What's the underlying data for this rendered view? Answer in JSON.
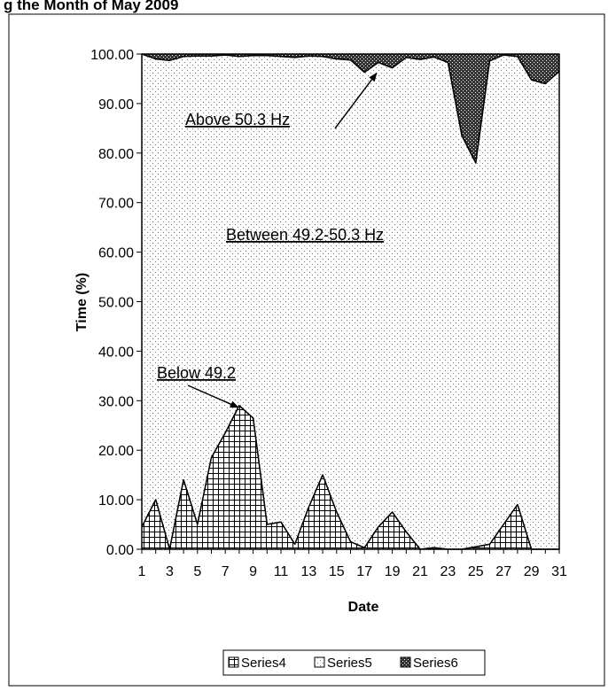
{
  "chart_data": {
    "type": "area",
    "stacked": true,
    "title": "g the Month of May 2009",
    "xlabel": "Date",
    "ylabel": "Time (%)",
    "ylim": [
      0,
      100
    ],
    "y_ticks": [
      "0.00",
      "10.00",
      "20.00",
      "30.00",
      "40.00",
      "50.00",
      "60.00",
      "70.00",
      "80.00",
      "90.00",
      "100.00"
    ],
    "x_ticks": [
      "1",
      "3",
      "5",
      "7",
      "9",
      "11",
      "13",
      "15",
      "17",
      "19",
      "21",
      "23",
      "25",
      "27",
      "29",
      "31"
    ],
    "x": [
      1,
      2,
      3,
      4,
      5,
      6,
      7,
      8,
      9,
      10,
      11,
      12,
      13,
      14,
      15,
      16,
      17,
      18,
      19,
      20,
      21,
      22,
      23,
      24,
      25,
      26,
      27,
      28,
      29,
      30,
      31
    ],
    "series": [
      {
        "name": "Series4",
        "pattern": "grid",
        "values": [
          4.5,
          10,
          0,
          14,
          5,
          18.5,
          23.5,
          29,
          26.5,
          5,
          5.5,
          1,
          8.5,
          15,
          7.5,
          1.5,
          0.3,
          4.5,
          7.5,
          3.5,
          0,
          0.3,
          0,
          0,
          0.5,
          1,
          5,
          9,
          0,
          0,
          0
        ]
      },
      {
        "name": "Series5",
        "pattern": "dots",
        "values": [
          95.5,
          89,
          98.7,
          85.5,
          94.6,
          81.1,
          76.3,
          70.5,
          73.2,
          94.7,
          94,
          98.3,
          91.1,
          84.5,
          91.5,
          97.3,
          96,
          93.8,
          89.7,
          95.8,
          98.9,
          99.1,
          98.3,
          83.5,
          77.5,
          97.6,
          94.8,
          90.5,
          94.8,
          94,
          96.5
        ]
      },
      {
        "name": "Series6",
        "pattern": "dark",
        "values": [
          0,
          1,
          1.3,
          0.5,
          0.4,
          0.4,
          0.2,
          0.5,
          0.3,
          0.3,
          0.5,
          0.7,
          0.4,
          0.5,
          1,
          1.2,
          3.7,
          1.7,
          2.8,
          0.7,
          1.1,
          0.6,
          1.7,
          16.5,
          22,
          1.4,
          0.2,
          0.5,
          5.2,
          6,
          3.5
        ]
      }
    ],
    "annotations": [
      {
        "text": "Above 50.3 Hz",
        "arrow_to": [
          18,
          96.5
        ]
      },
      {
        "text": "Between 49.2-50.3 Hz"
      },
      {
        "text": "Below 49.2",
        "arrow_to": [
          8,
          29
        ]
      }
    ],
    "legend": {
      "position": "bottom",
      "entries": [
        "Series4",
        "Series5",
        "Series6"
      ]
    },
    "grid": false,
    "colors": {
      "area_fill": "#ffffff",
      "dark": "#3a3a3a",
      "line": "#000000"
    }
  }
}
